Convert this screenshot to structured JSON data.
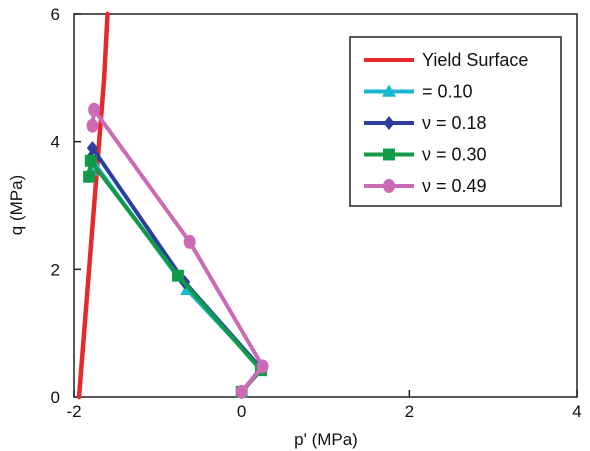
{
  "chart_data": {
    "type": "line",
    "title": "",
    "xlabel": "p' (MPa)",
    "ylabel": "q (MPa)",
    "xlim": [
      -2,
      4
    ],
    "ylim": [
      0,
      6
    ],
    "xticks": [
      "-2",
      "0",
      "2",
      "4"
    ],
    "yticks": [
      "0",
      "2",
      "4",
      "6"
    ],
    "grid": false,
    "legend_position": "top-right",
    "series": [
      {
        "name": "Yield Surface",
        "color": "#e8292c",
        "marker": "none",
        "x": [
          -1.94,
          -1.88,
          -1.82,
          -1.76,
          -1.7,
          -1.64,
          -1.6
        ],
        "y": [
          0,
          1.0,
          2.0,
          3.0,
          4.0,
          5.0,
          6.0
        ]
      },
      {
        "name": "= 0.10",
        "color": "#1ab6d6",
        "marker": "triangle",
        "x": [
          -1.8,
          -1.78,
          -0.65,
          0.23,
          0.0
        ],
        "y": [
          3.55,
          3.7,
          1.68,
          0.45,
          0.08
        ]
      },
      {
        "name": "ν = 0.18",
        "color": "#2b3e9e",
        "marker": "diamond",
        "x": [
          -1.8,
          -1.78,
          -0.68,
          0.23,
          0.0
        ],
        "y": [
          3.75,
          3.9,
          1.8,
          0.45,
          0.08
        ]
      },
      {
        "name": "ν = 0.30",
        "color": "#119a48",
        "marker": "square",
        "x": [
          -1.82,
          -1.8,
          -0.76,
          0.23,
          0.0
        ],
        "y": [
          3.45,
          3.7,
          1.9,
          0.42,
          0.08
        ]
      },
      {
        "name": "ν = 0.49",
        "color": "#cc6bb5",
        "marker": "circle",
        "x": [
          -1.78,
          -1.76,
          -0.62,
          0.25,
          0.0
        ],
        "y": [
          4.25,
          4.5,
          2.43,
          0.48,
          0.08
        ]
      }
    ]
  }
}
